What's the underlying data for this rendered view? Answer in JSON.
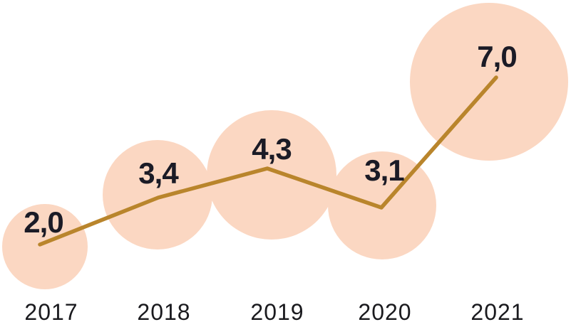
{
  "chart_data": {
    "type": "line",
    "variant": "bubble-line",
    "title": "",
    "xlabel": "",
    "ylabel": "",
    "categories": [
      "2017",
      "2018",
      "2019",
      "2020",
      "2021"
    ],
    "series": [
      {
        "name": "value",
        "values": [
          2.0,
          3.4,
          4.3,
          3.1,
          7.0
        ]
      }
    ],
    "value_labels": [
      "2,0",
      "3,4",
      "4,3",
      "3,1",
      "7,0"
    ],
    "decimal_separator": ",",
    "legend": "none",
    "grid": "off",
    "axes": "hidden",
    "bubble_scaling": "circle area proportional to value"
  },
  "colors": {
    "background": "#ffffff",
    "bubble_fill": "#fbd7c2",
    "line_stroke": "#b9852c",
    "value_label_text": "#1b1b26",
    "year_label_text": "#1a1a1e"
  }
}
